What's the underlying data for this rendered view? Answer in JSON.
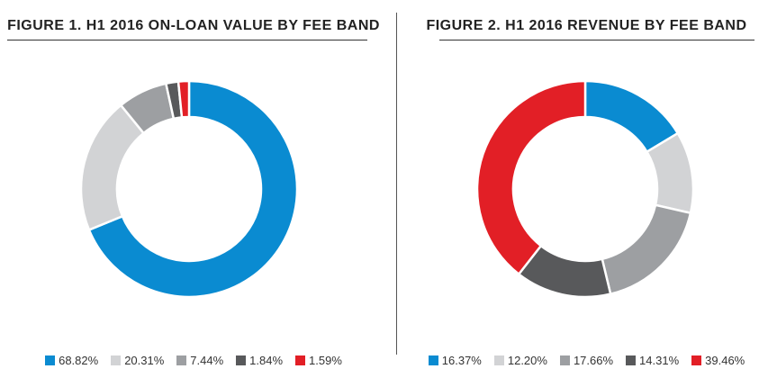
{
  "chart_data": [
    {
      "type": "pie",
      "title": "FIGURE 1. H1 2016 ON-LOAN VALUE BY FEE BAND",
      "values": [
        68.82,
        20.31,
        7.44,
        1.84,
        1.59
      ],
      "labels": [
        "68.82%",
        "20.31%",
        "7.44%",
        "1.84%",
        "1.59%"
      ],
      "colors": [
        "#0a8bd1",
        "#d2d3d5",
        "#9d9fa2",
        "#58595b",
        "#e21f26"
      ],
      "donut": true,
      "legend_placement": "bottom"
    },
    {
      "type": "pie",
      "title": "FIGURE 2. H1 2016 REVENUE BY FEE BAND",
      "values": [
        16.37,
        12.2,
        17.66,
        14.31,
        39.46
      ],
      "labels": [
        "16.37%",
        "12.20%",
        "17.66%",
        "14.31%",
        "39.46%"
      ],
      "colors": [
        "#0a8bd1",
        "#d2d3d5",
        "#9d9fa2",
        "#58595b",
        "#e21f26"
      ],
      "donut": true,
      "legend_placement": "bottom"
    }
  ]
}
